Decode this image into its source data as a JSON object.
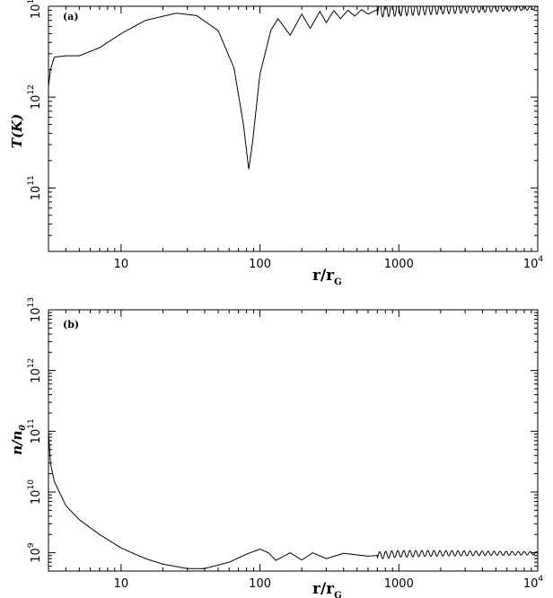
{
  "chart_data": [
    {
      "type": "line",
      "panel_label": "(a)",
      "xlabel_main": "r/r",
      "xlabel_sub": "G",
      "ylabel": "T(K)",
      "xscale": "log",
      "yscale": "log",
      "xlim": [
        3,
        10000
      ],
      "ylim": [
        20000000000.0,
        10000000000000.0
      ],
      "x_tick_labels": [
        {
          "value": 10,
          "base": "10",
          "exp": ""
        },
        {
          "value": 100,
          "base": "100",
          "exp": ""
        },
        {
          "value": 1000,
          "base": "1000",
          "exp": ""
        },
        {
          "value": 10000,
          "base": "10",
          "exp": "4"
        }
      ],
      "y_tick_labels": [
        {
          "value": 100000000000.0,
          "base": "10",
          "exp": "11"
        },
        {
          "value": 1000000000000.0,
          "base": "10",
          "exp": "12"
        },
        {
          "value": 10000000000000.0,
          "base": "10",
          "exp": "13"
        }
      ],
      "series": [
        {
          "points": [
            [
              3.0,
              1300000000000.0
            ],
            [
              3.1,
              2000000000000.0
            ],
            [
              3.3,
              2750000000000.0
            ],
            [
              4.0,
              2850000000000.0
            ],
            [
              5.0,
              2850000000000.0
            ],
            [
              7.0,
              3500000000000.0
            ],
            [
              10.0,
              5000000000000.0
            ],
            [
              15.0,
              7000000000000.0
            ],
            [
              25.0,
              8400000000000.0
            ],
            [
              35.0,
              7900000000000.0
            ],
            [
              50.0,
              5400000000000.0
            ],
            [
              65.0,
              2100000000000.0
            ],
            [
              76.0,
              500000000000.0
            ],
            [
              83.0,
              160000000000.0
            ],
            [
              88.0,
              300000000000.0
            ],
            [
              100.0,
              1800000000000.0
            ],
            [
              120.0,
              5500000000000.0
            ],
            [
              135.0,
              7300000000000.0
            ],
            [
              165.0,
              4800000000000.0
            ],
            [
              200.0,
              8200000000000.0
            ],
            [
              230.0,
              5700000000000.0
            ],
            [
              270.0,
              8800000000000.0
            ],
            [
              300.0,
              6600000000000.0
            ],
            [
              340.0,
              9000000000000.0
            ],
            [
              380.0,
              7300000000000.0
            ],
            [
              430.0,
              9100000000000.0
            ],
            [
              480.0,
              7800000000000.0
            ],
            [
              540.0,
              9200000000000.0
            ],
            [
              600.0,
              8200000000000.0
            ],
            [
              700.0,
              9200000000000.0
            ],
            [
              1000.0,
              9300000000000.0
            ],
            [
              2000.0,
              9400000000000.0
            ],
            [
              5000.0,
              9500000000000.0
            ],
            [
              10000.0,
              9600000000000.0
            ]
          ],
          "oscillation": {
            "from": 130,
            "to": 10000,
            "ratio_period": 1.105,
            "amp_start": 0.25,
            "amp_end": 0.04
          }
        }
      ]
    },
    {
      "type": "line",
      "panel_label": "(b)",
      "xlabel_main": "r/r",
      "xlabel_sub": "G",
      "ylabel": "n/n",
      "ylabel_sub": "0",
      "xscale": "log",
      "yscale": "log",
      "xlim": [
        3,
        10000
      ],
      "ylim": [
        500000000.0,
        10000000000000.0
      ],
      "x_tick_labels": [
        {
          "value": 10,
          "base": "10",
          "exp": ""
        },
        {
          "value": 100,
          "base": "100",
          "exp": ""
        },
        {
          "value": 1000,
          "base": "1000",
          "exp": ""
        },
        {
          "value": 10000,
          "base": "10",
          "exp": "4"
        }
      ],
      "y_tick_labels": [
        {
          "value": 1000000000.0,
          "base": "10",
          "exp": "9"
        },
        {
          "value": 10000000000.0,
          "base": "10",
          "exp": "10"
        },
        {
          "value": 100000000000.0,
          "base": "10",
          "exp": "11"
        },
        {
          "value": 1000000000000.0,
          "base": "10",
          "exp": "12"
        },
        {
          "value": 10000000000000.0,
          "base": "10",
          "exp": "13"
        }
      ],
      "series": [
        {
          "points": [
            [
              3.0,
              100000000000.0
            ],
            [
              3.1,
              30000000000.0
            ],
            [
              3.3,
              15000000000.0
            ],
            [
              4.0,
              6000000000.0
            ],
            [
              5.0,
              3500000000.0
            ],
            [
              7.0,
              2000000000.0
            ],
            [
              10.0,
              1200000000.0
            ],
            [
              15.0,
              800000000.0
            ],
            [
              20.0,
              650000000.0
            ],
            [
              30.0,
              550000000.0
            ],
            [
              40.0,
              550000000.0
            ],
            [
              60.0,
              700000000.0
            ],
            [
              80.0,
              950000000.0
            ],
            [
              100.0,
              1150000000.0
            ],
            [
              115.0,
              1000000000.0
            ],
            [
              130.0,
              750000000.0
            ],
            [
              165.0,
              1000000000.0
            ],
            [
              200.0,
              760000000.0
            ],
            [
              240.0,
              1000000000.0
            ],
            [
              300.0,
              800000000.0
            ],
            [
              400.0,
              980000000.0
            ],
            [
              600.0,
              880000000.0
            ],
            [
              1000.0,
              960000000.0
            ],
            [
              2000.0,
              980000000.0
            ],
            [
              5000.0,
              980000000.0
            ],
            [
              10000.0,
              980000000.0
            ]
          ],
          "oscillation": {
            "from": 130,
            "to": 10000,
            "ratio_period": 1.105,
            "amp_start": 0.16,
            "amp_end": 0.05
          }
        }
      ]
    }
  ]
}
